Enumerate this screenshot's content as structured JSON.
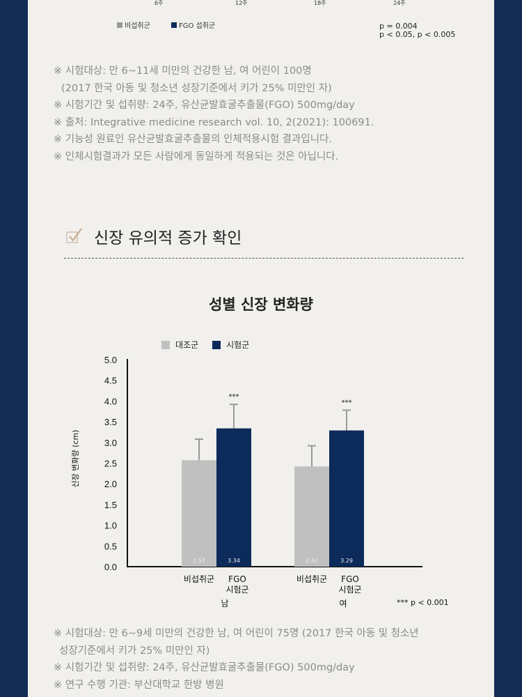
{
  "top_chart": {
    "x_ticks": [
      "6주",
      "12주",
      "18주",
      "24주"
    ],
    "legend": [
      "비섭취군",
      "FGO 섭취군"
    ],
    "pvalues": [
      "p = 0.004",
      "p < 0.05, p < 0.005"
    ]
  },
  "notes1": [
    "※ 시험대상: 만 6~11세 미만의 건강한 남, 여 어린이 100명",
    "(2017 한국 아동 및 청소년 성장기준에서 키가 25% 미만인 자)",
    "※ 시험기간 및 섭취량: 24주, 유산균발효굴추출물(FGO) 500mg/day",
    "※ 출처: Integrative medicine research vol. 10, 2(2021): 100691.",
    "※ 기능성 원료인 유산균발효굴추출물의 인체적용시험 결과입니다.",
    "※ 인체시험결과가 모든 사람에게 동일하게 적용되는 것은 아닙니다."
  ],
  "section": {
    "heading": "신장 유의적 증가 확인",
    "icon": "checkmark-icon"
  },
  "chart_data": {
    "type": "bar",
    "title": "성별 신장 변화량",
    "ylabel": "신장 변화량 (cm)",
    "ylim": [
      0,
      5
    ],
    "yticks": [
      "0.0",
      "0.5",
      "1.0",
      "1.5",
      "2.0",
      "2.5",
      "3.0",
      "3.5",
      "4.0",
      "4.5",
      "5.0"
    ],
    "legend": [
      "대조군",
      "시험군"
    ],
    "legend_placement": "top",
    "groups": [
      "남",
      "여"
    ],
    "bars": [
      {
        "group": "남",
        "label": "비섭취군",
        "series": "대조군",
        "value": 2.57,
        "value_label": "2.57",
        "err_top": 3.08,
        "sig": ""
      },
      {
        "group": "남",
        "label": "FGO\n시험군",
        "series": "시험군",
        "value": 3.34,
        "value_label": "3.34",
        "err_top": 3.92,
        "sig": "***"
      },
      {
        "group": "여",
        "label": "비섭취군",
        "series": "대조군",
        "value": 2.42,
        "value_label": "2.42",
        "err_top": 2.92,
        "sig": ""
      },
      {
        "group": "여",
        "label": "FGO\n시험군",
        "series": "시험군",
        "value": 3.29,
        "value_label": "3.29",
        "err_top": 3.78,
        "sig": "***"
      }
    ],
    "colors": {
      "대조군": "#c0c0c0",
      "시험군": "#0c2a5a"
    },
    "footnote": "*** p < 0.001"
  },
  "notes2": [
    "※ 시험대상: 만 6~9세 미만의 건강한 남, 여 어린이 75명 (2017 한국 아동 및 청소년",
    "성장기준에서 키가 25% 미만인 자)",
    "※ 시험기간 및 섭취량: 24주, 유산균발효굴추출물(FGO) 500mg/day",
    "※ 연구 수행 기관: 부산대학교 한방 병원"
  ]
}
